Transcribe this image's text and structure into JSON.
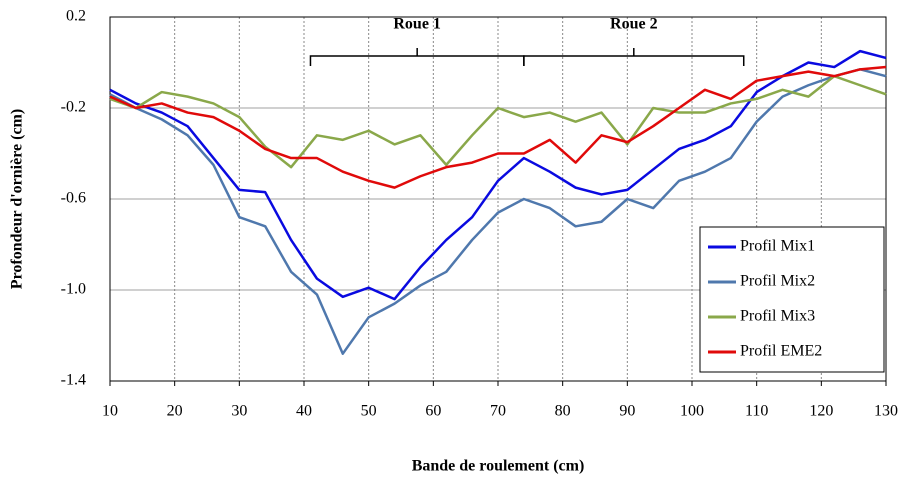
{
  "chart_data": {
    "type": "line",
    "x_label": "Bande de roulement (cm)",
    "y_label": "Profondeur d'ornière (cm)",
    "x": [
      10,
      14,
      18,
      22,
      26,
      30,
      34,
      38,
      42,
      46,
      50,
      54,
      58,
      62,
      66,
      70,
      74,
      78,
      82,
      86,
      90,
      94,
      98,
      102,
      106,
      110,
      114,
      118,
      122,
      126,
      130
    ],
    "series": [
      {
        "name": "Profil Mix1",
        "color": "#0a0ae0",
        "values": [
          -0.12,
          -0.18,
          -0.22,
          -0.28,
          -0.42,
          -0.56,
          -0.57,
          -0.78,
          -0.95,
          -1.03,
          -0.99,
          -1.04,
          -0.9,
          -0.78,
          -0.68,
          -0.52,
          -0.42,
          -0.48,
          -0.55,
          -0.58,
          -0.56,
          -0.47,
          -0.38,
          -0.34,
          -0.28,
          -0.13,
          -0.06,
          0.0,
          -0.02,
          0.05,
          0.02
        ]
      },
      {
        "name": "Profil Mix2",
        "color": "#4f78ad",
        "values": [
          -0.14,
          -0.2,
          -0.25,
          -0.32,
          -0.45,
          -0.68,
          -0.72,
          -0.92,
          -1.02,
          -1.28,
          -1.12,
          -1.06,
          -0.98,
          -0.92,
          -0.78,
          -0.66,
          -0.6,
          -0.64,
          -0.72,
          -0.7,
          -0.6,
          -0.64,
          -0.52,
          -0.48,
          -0.42,
          -0.26,
          -0.15,
          -0.1,
          -0.06,
          -0.03,
          -0.06
        ]
      },
      {
        "name": "Profil Mix3",
        "color": "#8aa84a",
        "values": [
          -0.16,
          -0.2,
          -0.13,
          -0.15,
          -0.18,
          -0.24,
          -0.37,
          -0.46,
          -0.32,
          -0.34,
          -0.3,
          -0.36,
          -0.32,
          -0.45,
          -0.32,
          -0.2,
          -0.24,
          -0.22,
          -0.26,
          -0.22,
          -0.36,
          -0.2,
          -0.22,
          -0.22,
          -0.18,
          -0.16,
          -0.12,
          -0.15,
          -0.06,
          -0.1,
          -0.14
        ]
      },
      {
        "name": "Profil EME2",
        "color": "#e00a0a",
        "values": [
          -0.15,
          -0.2,
          -0.18,
          -0.22,
          -0.24,
          -0.3,
          -0.38,
          -0.42,
          -0.42,
          -0.48,
          -0.52,
          -0.55,
          -0.5,
          -0.46,
          -0.44,
          -0.4,
          -0.4,
          -0.34,
          -0.44,
          -0.32,
          -0.35,
          -0.28,
          -0.2,
          -0.12,
          -0.16,
          -0.08,
          -0.06,
          -0.04,
          -0.06,
          -0.03,
          -0.02
        ]
      }
    ],
    "annotations": [
      {
        "text": "Roue 1",
        "x": [
          41,
          74
        ]
      },
      {
        "text": "Roue 2",
        "x": [
          74,
          108
        ]
      }
    ],
    "xlim": [
      10,
      130
    ],
    "xticks": [
      10,
      20,
      30,
      40,
      50,
      60,
      70,
      80,
      90,
      100,
      110,
      120,
      130
    ],
    "ylim": [
      -1.4,
      0.2
    ],
    "yticks": [
      0.2,
      -0.2,
      -0.6,
      {
        "value": -1,
        "label": "-1.0"
      },
      -1.4
    ],
    "grid": true,
    "legend": "lower right"
  }
}
